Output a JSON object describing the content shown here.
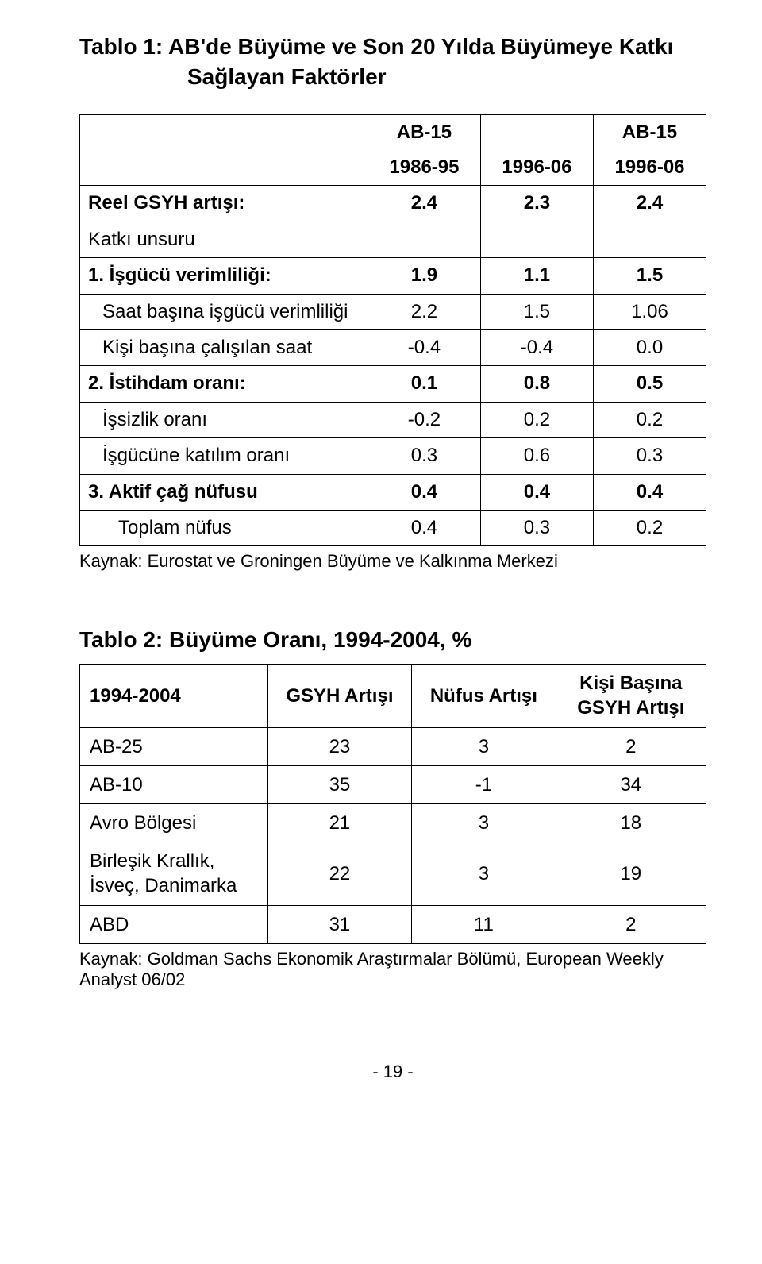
{
  "table1": {
    "title_line1": "Tablo 1:  AB'de Büyüme ve Son 20 Yılda Büyümeye Katkı",
    "title_line2": "Sağlayan Faktörler",
    "header": {
      "c1": "AB-15",
      "c2": "AB-15",
      "c1b": "1986-95",
      "c2b": "1996-06",
      "c3b": "1996-06"
    },
    "rows": [
      {
        "label": "Reel GSYH artışı:",
        "v": [
          "2.4",
          "2.3",
          "2.4"
        ],
        "bold": true,
        "indent": 0
      },
      {
        "label": "Katkı unsuru",
        "v": [
          "",
          "",
          ""
        ],
        "bold": false,
        "indent": 0
      },
      {
        "label": "1. İşgücü verimliliği:",
        "v": [
          "1.9",
          "1.1",
          "1.5"
        ],
        "bold": true,
        "indent": 0
      },
      {
        "label": "Saat başına işgücü verimliliği",
        "v": [
          "2.2",
          "1.5",
          "1.06"
        ],
        "bold": false,
        "indent": 1
      },
      {
        "label": "Kişi başına çalışılan saat",
        "v": [
          "-0.4",
          "-0.4",
          "0.0"
        ],
        "bold": false,
        "indent": 1
      },
      {
        "label": "2. İstihdam oranı:",
        "v": [
          "0.1",
          "0.8",
          "0.5"
        ],
        "bold": true,
        "indent": 0
      },
      {
        "label": "İşsizlik oranı",
        "v": [
          "-0.2",
          "0.2",
          "0.2"
        ],
        "bold": false,
        "indent": 1
      },
      {
        "label": "İşgücüne katılım oranı",
        "v": [
          "0.3",
          "0.6",
          "0.3"
        ],
        "bold": false,
        "indent": 1
      },
      {
        "label": "3. Aktif çağ nüfusu",
        "v": [
          "0.4",
          "0.4",
          "0.4"
        ],
        "bold": true,
        "indent": 0
      },
      {
        "label": "Toplam nüfus",
        "v": [
          "0.4",
          "0.3",
          "0.2"
        ],
        "bold": false,
        "indent": 2
      }
    ],
    "source": "Kaynak: Eurostat ve Groningen Büyüme ve Kalkınma Merkezi"
  },
  "table2": {
    "title": "Tablo 2: Büyüme Oranı, 1994-2004, %",
    "columns": [
      "1994-2004",
      "GSYH Artışı",
      "Nüfus Artışı",
      "Kişi Başına GSYH Artışı"
    ],
    "rows": [
      {
        "label": "AB-25",
        "v": [
          "23",
          "3",
          "2"
        ]
      },
      {
        "label": "AB-10",
        "v": [
          "35",
          "-1",
          "34"
        ]
      },
      {
        "label": "Avro Bölgesi",
        "v": [
          "21",
          "3",
          "18"
        ]
      },
      {
        "label": "Birleşik Krallık, İsveç, Danimarka",
        "v": [
          "22",
          "3",
          "19"
        ]
      },
      {
        "label": "ABD",
        "v": [
          "31",
          "11",
          "2"
        ]
      }
    ],
    "source": "Kaynak: Goldman Sachs Ekonomik Araştırmalar Bölümü, European Weekly Analyst 06/02"
  },
  "footer": "- 19 -"
}
